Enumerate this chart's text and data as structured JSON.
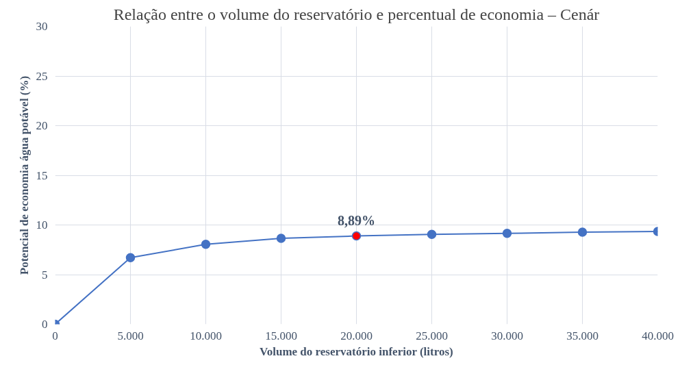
{
  "chart_data": {
    "type": "line",
    "title": "Relação entre o volume do reservatório e percentual de economia – Cenár",
    "xlabel": "Volume do reservatório inferior (litros)",
    "ylabel": "Potencial de economia água potável (%)",
    "x": [
      0,
      5000,
      10000,
      15000,
      20000,
      25000,
      30000,
      35000,
      40000
    ],
    "series": [
      {
        "color": "#4472c4",
        "values": [
          0,
          6.7,
          8.05,
          8.65,
          8.89,
          9.05,
          9.15,
          9.28,
          9.35
        ],
        "colors": [
          "#4472c4",
          "#4472c4",
          "#4472c4",
          "#4472c4",
          "#ff0000",
          "#4472c4",
          "#4472c4",
          "#4472c4",
          "#4472c4"
        ]
      }
    ],
    "xlim": [
      0,
      40000
    ],
    "ylim": [
      0,
      30
    ],
    "xticks": [
      0,
      {
        "value": 5000,
        "label": "5.000"
      },
      {
        "value": 10000,
        "label": "10.000"
      },
      {
        "value": 15000,
        "label": "15.000"
      },
      {
        "value": 20000,
        "label": "20.000"
      },
      {
        "value": 25000,
        "label": "25.000"
      },
      {
        "value": 30000,
        "label": "30.000"
      },
      {
        "value": 35000,
        "label": "35.000"
      },
      {
        "value": 40000,
        "label": "40.000"
      }
    ],
    "yticks": [
      0,
      5,
      10,
      15,
      20,
      25,
      30
    ],
    "annotations": [
      {
        "text": "8,89%",
        "x": 20000,
        "y": 8.89
      }
    ],
    "grid": true,
    "marker": "circle",
    "line_style": "solid"
  }
}
